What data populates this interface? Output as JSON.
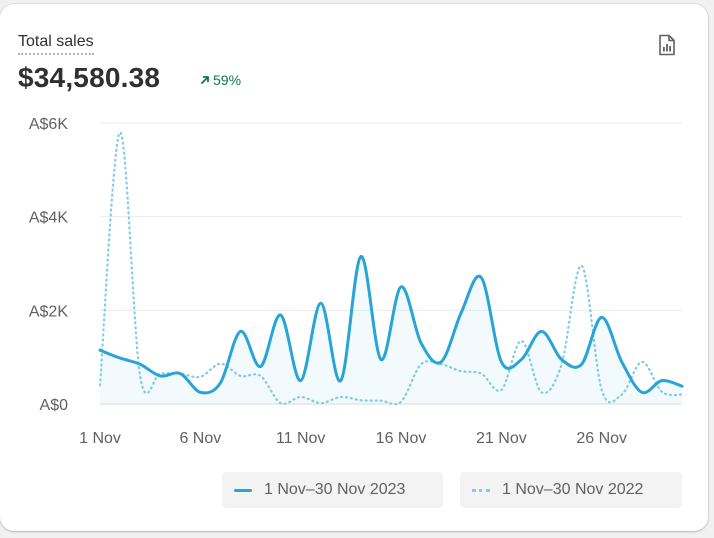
{
  "card": {
    "title": "Total sales",
    "total": "$34,580.38",
    "trend_percent": "59%",
    "trend_direction": "up",
    "export_icon": "report-document-icon"
  },
  "colors": {
    "current_series": "#29a4d6",
    "previous_series": "#7fcbe8",
    "trend_positive": "#0c7a43",
    "gridline": "#ececec"
  },
  "chart_data": {
    "type": "line",
    "ylim": [
      0,
      6000
    ],
    "y_ticks": [
      {
        "value": 0,
        "label": "A$0"
      },
      {
        "value": 2000,
        "label": "A$2K"
      },
      {
        "value": 4000,
        "label": "A$4K"
      },
      {
        "value": 6000,
        "label": "A$6K"
      }
    ],
    "x": [
      1,
      2,
      3,
      4,
      5,
      6,
      7,
      8,
      9,
      10,
      11,
      12,
      13,
      14,
      15,
      16,
      17,
      18,
      19,
      20,
      21,
      22,
      23,
      24,
      25,
      26,
      27,
      28,
      29,
      30
    ],
    "x_ticks": [
      {
        "day": 1,
        "label": "1 Nov"
      },
      {
        "day": 6,
        "label": "6 Nov"
      },
      {
        "day": 11,
        "label": "11 Nov"
      },
      {
        "day": 16,
        "label": "16 Nov"
      },
      {
        "day": 21,
        "label": "21 Nov"
      },
      {
        "day": 26,
        "label": "26 Nov"
      }
    ],
    "grid": true,
    "legend_position": "bottom-right",
    "series": [
      {
        "name": "1 Nov–30 Nov 2023",
        "style": "solid",
        "values": [
          1150,
          980,
          850,
          600,
          650,
          250,
          450,
          1550,
          800,
          1900,
          500,
          2150,
          500,
          3150,
          950,
          2500,
          1300,
          900,
          1950,
          2700,
          900,
          950,
          1550,
          950,
          850,
          1850,
          900,
          250,
          500,
          380
        ]
      },
      {
        "name": "1 Nov–30 Nov 2022",
        "style": "dotted",
        "values": [
          400,
          5800,
          600,
          650,
          650,
          580,
          860,
          600,
          600,
          20,
          150,
          20,
          150,
          80,
          70,
          50,
          850,
          850,
          700,
          650,
          300,
          1350,
          250,
          850,
          2950,
          300,
          200,
          900,
          260,
          200
        ]
      }
    ]
  }
}
